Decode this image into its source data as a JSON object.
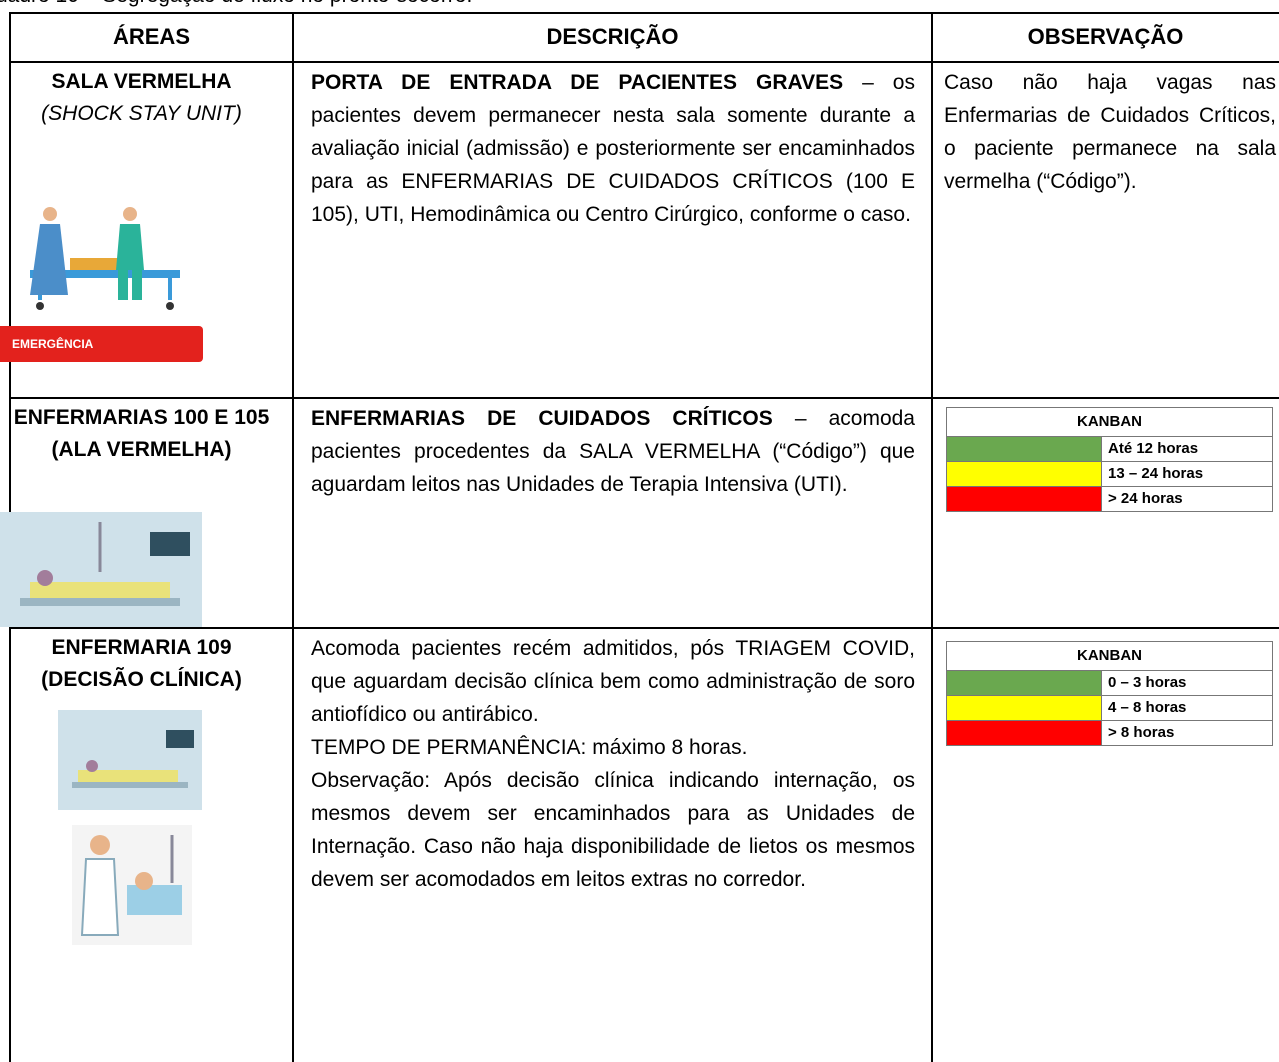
{
  "caption": "uadro 10 – Segregação de fluxo no pronto-socorro.",
  "table": {
    "headers": [
      "ÁREAS",
      "DESCRIÇÃO",
      "OBSERVAÇÃO"
    ],
    "rows": [
      {
        "area_title": "SALA VERMELHA",
        "area_subtitle": "(SHOCK STAY UNIT)",
        "badge": "EMERGÊNCIA",
        "description_bold": "PORTA DE ENTRADA DE PACIENTES GRAVES",
        "description": "– os pacientes devem permanecer nesta sala somente durante a avaliação inicial (admissão) e posteriormente ser encaminhados para as ENFERMARIAS DE CUIDADOS CRÍTICOS (100 E 105), UTI, Hemodinâmica ou Centro Cirúrgico, conforme o caso.",
        "observation": "Caso não haja vagas nas Enfermarias de Cuidados Críticos, o paciente permanece na sala vermelha (“Código”)."
      },
      {
        "area_title": "ENFERMARIAS 100 E 105",
        "area_subtitle": "(ALA VERMELHA)",
        "description_bold": "ENFERMARIAS DE CUIDADOS CRÍTICOS",
        "description": "– acomoda pacientes procedentes da SALA VERMELHA (“Código”) que aguardam leitos nas Unidades de Terapia Intensiva (UTI).",
        "kanban": {
          "title": "KANBAN",
          "items": [
            "Até 12 horas",
            "13 – 24 horas",
            "> 24 horas"
          ]
        }
      },
      {
        "area_title": "ENFERMARIA 109",
        "area_subtitle": "(DECISÃO CLÍNICA)",
        "paragraphs": [
          "Acomoda pacientes recém admitidos, pós TRIAGEM COVID, que aguardam decisão clínica bem como administração de soro antiofídico ou antirábico.",
          "TEMPO DE PERMANÊNCIA: máximo 8 horas.",
          "Observação: Após decisão clínica indicando internação, os mesmos devem ser encaminhados para as Unidades de Internação. Caso não haja disponibilidade de lietos os mesmos devem ser acomodados em leitos extras no corredor."
        ],
        "kanban": {
          "title": "KANBAN",
          "items": [
            "0 – 3 horas",
            "4 – 8 horas",
            "> 8 horas"
          ]
        }
      }
    ]
  }
}
